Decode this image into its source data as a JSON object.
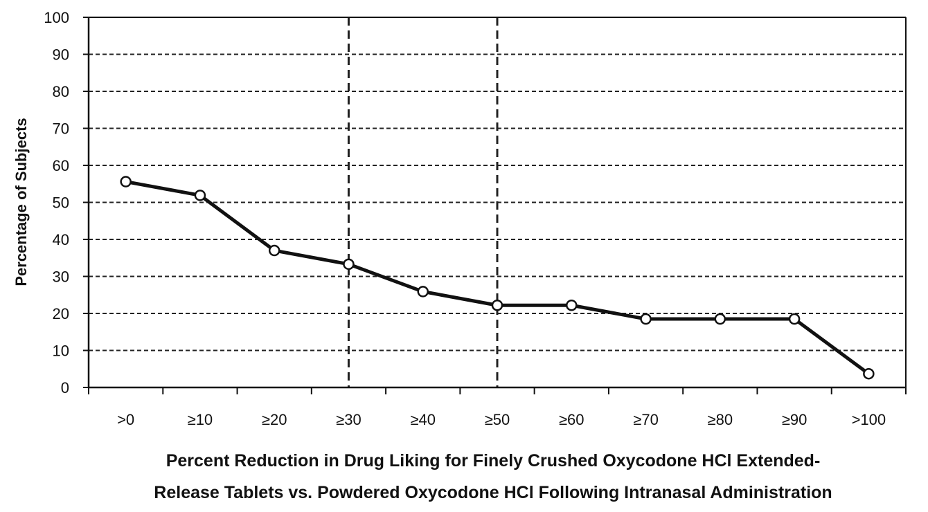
{
  "chart_data": {
    "type": "line",
    "categories": [
      ">0",
      "≥10",
      "≥20",
      "≥30",
      "≥40",
      "≥50",
      "≥60",
      "≥70",
      "≥80",
      "≥90",
      ">100"
    ],
    "series": [
      {
        "name": "Percentage of Subjects",
        "values": [
          55.6,
          51.9,
          37.0,
          33.3,
          25.9,
          22.2,
          22.2,
          18.5,
          18.5,
          18.5,
          3.7
        ]
      }
    ],
    "ylabel": "Percentage of Subjects",
    "xlabel_lines": [
      "Percent Reduction in Drug Liking for Finely Crushed Oxycodone HCl Extended-",
      "Release Tablets vs. Powdered Oxycodone HCl Following Intranasal Administration"
    ],
    "ylim": [
      0,
      100
    ],
    "yticks": [
      0,
      10,
      20,
      30,
      40,
      50,
      60,
      70,
      80,
      90,
      100
    ],
    "reference_lines_at_categories": [
      "≥30",
      "≥50"
    ],
    "grid": "horizontal dashed"
  }
}
